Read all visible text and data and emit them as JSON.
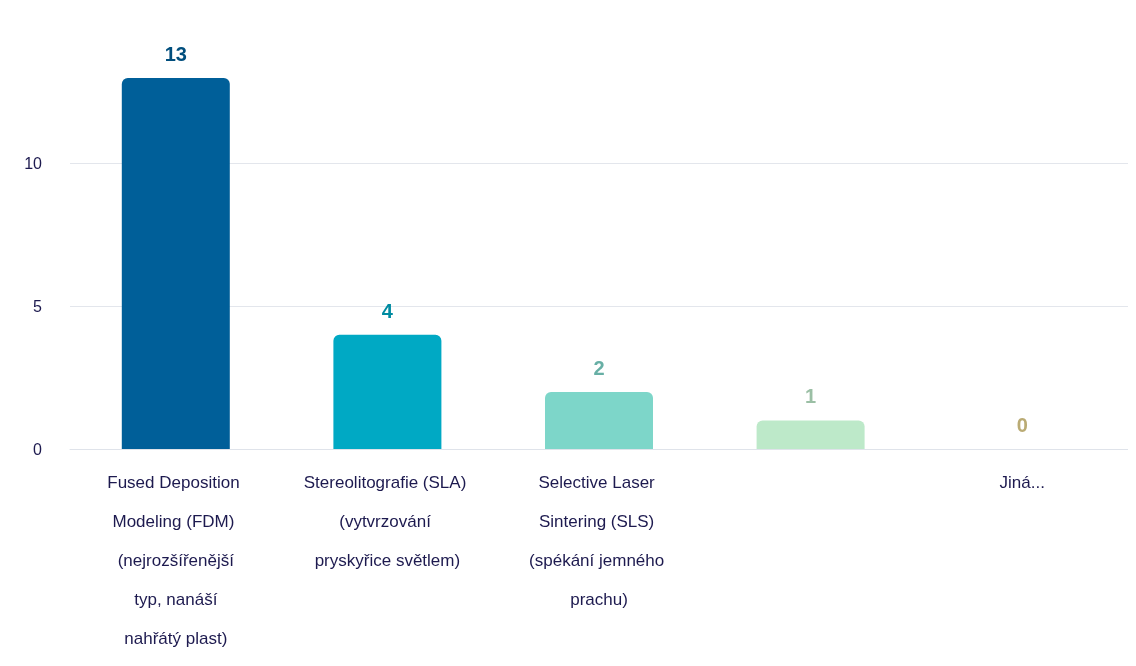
{
  "chart_data": {
    "type": "bar",
    "categories": [
      "Fused Deposition Modeling (FDM) (nejrozšířenější typ, nanáší nahřátý plast)",
      "Stereolitografie (SLA) (vytvrzování pryskyřice světlem)",
      "Selective Laser Sintering (SLS) (spékání jemného prachu)",
      null,
      "Jiná..."
    ],
    "values": [
      13,
      4,
      2,
      1,
      0
    ],
    "colors": [
      "#005f99",
      "#00a9c4",
      "#7dd6c9",
      "#bde9c9",
      "#e3d08e"
    ],
    "ylim": [
      0,
      13
    ],
    "yticks": [
      0,
      5,
      10
    ],
    "grid": "y",
    "data_labels": true
  }
}
